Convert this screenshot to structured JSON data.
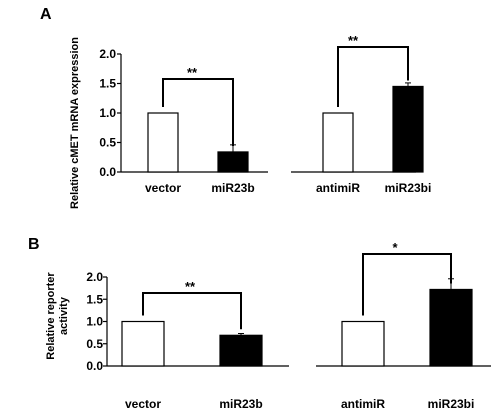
{
  "chart_data": [
    {
      "type": "bar",
      "panel_label": "A",
      "ylabel": "Relative cMET mRNA expression",
      "ylim": [
        0,
        2
      ],
      "yticks": [
        "0.0",
        "0.5",
        "1.0",
        "1.5",
        "2.0"
      ],
      "groups": [
        {
          "categories": [
            "vector",
            "miR23b"
          ],
          "values": [
            1.0,
            0.34
          ],
          "errors": [
            0,
            0.12
          ],
          "fills": [
            "#ffffff",
            "#000000"
          ],
          "significance": "**"
        },
        {
          "categories": [
            "antimiR",
            "miR23bi"
          ],
          "values": [
            1.0,
            1.45
          ],
          "errors": [
            0,
            0.06
          ],
          "fills": [
            "#ffffff",
            "#000000"
          ],
          "significance": "**"
        }
      ]
    },
    {
      "type": "bar",
      "panel_label": "B",
      "ylabel": "Relative reporter activity",
      "ylim": [
        0,
        2
      ],
      "yticks": [
        "0.0",
        "0.5",
        "1.0",
        "1.5",
        "2.0"
      ],
      "groups": [
        {
          "categories": [
            "vector",
            "miR23b"
          ],
          "values": [
            1.0,
            0.69
          ],
          "errors": [
            0,
            0.04
          ],
          "fills": [
            "#ffffff",
            "#000000"
          ],
          "significance": "**"
        },
        {
          "categories": [
            "antimiR",
            "miR23bi"
          ],
          "values": [
            1.0,
            1.72
          ],
          "errors": [
            0,
            0.24
          ],
          "fills": [
            "#ffffff",
            "#000000"
          ],
          "significance": "*"
        }
      ]
    }
  ]
}
